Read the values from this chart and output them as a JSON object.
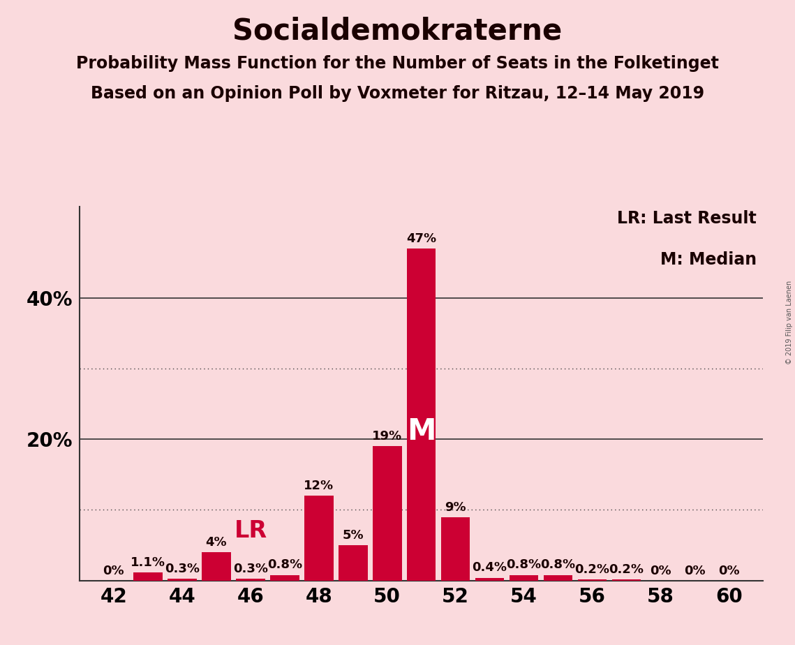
{
  "title": "Socialdemokraterne",
  "subtitle1": "Probability Mass Function for the Number of Seats in the Folketinget",
  "subtitle2": "Based on an Opinion Poll by Voxmeter for Ritzau, 12–14 May 2019",
  "copyright": "© 2019 Filip van Laenen",
  "legend_lr": "LR: Last Result",
  "legend_m": "M: Median",
  "background_color": "#fadadd",
  "bar_color": "#cc0033",
  "seats": [
    42,
    43,
    44,
    45,
    46,
    47,
    48,
    49,
    50,
    51,
    52,
    53,
    54,
    55,
    56,
    57,
    58,
    59,
    60
  ],
  "probabilities": [
    0.0,
    1.1,
    0.3,
    4.0,
    0.3,
    0.8,
    12.0,
    5.0,
    19.0,
    47.0,
    9.0,
    0.4,
    0.8,
    0.8,
    0.2,
    0.2,
    0.0,
    0.0,
    0.0
  ],
  "labels": [
    "0%",
    "1.1%",
    "0.3%",
    "4%",
    "0.3%",
    "0.8%",
    "12%",
    "5%",
    "19%",
    "47%",
    "9%",
    "0.4%",
    "0.8%",
    "0.8%",
    "0.2%",
    "0.2%",
    "0%",
    "0%",
    "0%"
  ],
  "last_result_seat": 47,
  "median_seat": 51,
  "ylim_max": 53,
  "dotted_lines": [
    10,
    30
  ],
  "solid_lines": [
    20,
    40
  ],
  "xlim": [
    41.0,
    61.0
  ],
  "xticks": [
    42,
    44,
    46,
    48,
    50,
    52,
    54,
    56,
    58,
    60
  ],
  "title_fontsize": 30,
  "subtitle_fontsize": 17,
  "label_fontsize": 13,
  "tick_fontsize": 20,
  "lr_label_fontsize": 24,
  "m_label_fontsize": 30,
  "legend_fontsize": 17
}
